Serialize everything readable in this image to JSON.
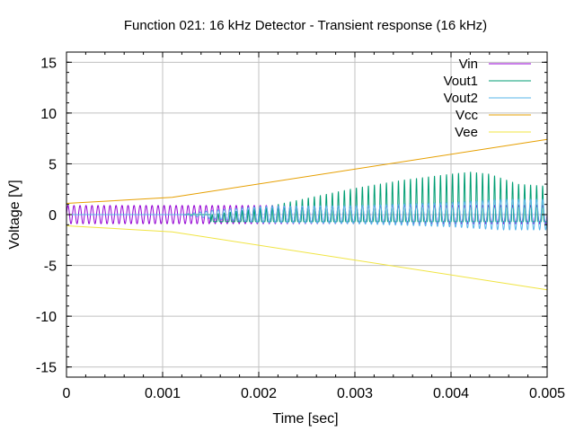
{
  "chart_data": {
    "type": "line",
    "title": "Function 021: 16 kHz Detector - Transient response (16 kHz)",
    "xlabel": "Time [sec]",
    "ylabel": "Voltage [V]",
    "xlim": [
      0,
      0.005
    ],
    "ylim": [
      -16,
      16
    ],
    "x_ticks": [
      0,
      0.001,
      0.002,
      0.003,
      0.004,
      0.005
    ],
    "x_tick_labels": [
      "0",
      "0.001",
      "0.002",
      "0.003",
      "0.004",
      "0.005"
    ],
    "y_ticks": [
      -15,
      -10,
      -5,
      0,
      5,
      10,
      15
    ],
    "y_tick_labels": [
      "-15",
      "-10",
      "-5",
      "0",
      "5",
      "10",
      "15"
    ],
    "grid": true,
    "legend_position": "top-right",
    "signal_frequency_hz": 16000,
    "series": [
      {
        "name": "Vin",
        "color": "#9400d3",
        "kind": "sine",
        "amplitude": 0.9,
        "offset": 0
      },
      {
        "name": "Vout1",
        "color": "#009e73",
        "kind": "pulses",
        "baseline": -0.7,
        "envelope": [
          [
            0,
            0
          ],
          [
            0.0015,
            0
          ],
          [
            0.002,
            0.6
          ],
          [
            0.0025,
            1.6
          ],
          [
            0.003,
            2.6
          ],
          [
            0.0035,
            3.4
          ],
          [
            0.004,
            4.0
          ],
          [
            0.0042,
            4.2
          ],
          [
            0.0044,
            4.0
          ],
          [
            0.0047,
            3.0
          ],
          [
            0.005,
            2.8
          ]
        ]
      },
      {
        "name": "Vout2",
        "color": "#56b4e9",
        "kind": "sine",
        "offset": 0,
        "envelope": [
          [
            0,
            0
          ],
          [
            0.0012,
            0
          ],
          [
            0.0015,
            0.4
          ],
          [
            0.002,
            0.8
          ],
          [
            0.003,
            0.9
          ],
          [
            0.004,
            1.2
          ],
          [
            0.0045,
            1.5
          ],
          [
            0.005,
            1.5
          ]
        ]
      },
      {
        "name": "Vcc",
        "color": "#e69f00",
        "kind": "line",
        "x": [
          0,
          0.0011,
          0.005
        ],
        "y": [
          1.1,
          1.7,
          7.4
        ]
      },
      {
        "name": "Vee",
        "color": "#f0e442",
        "kind": "line",
        "x": [
          0,
          0.0011,
          0.005
        ],
        "y": [
          -1.1,
          -1.7,
          -7.4
        ]
      }
    ]
  }
}
